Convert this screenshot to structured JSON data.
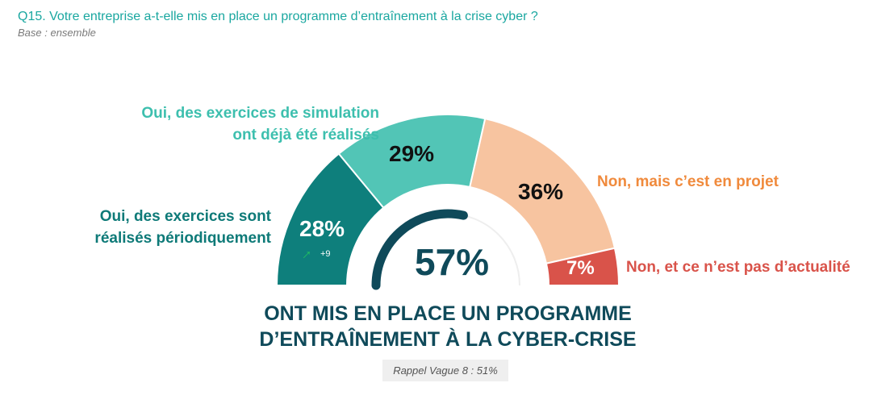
{
  "question": "Q15. Votre entreprise a-t-elle mis en place un programme d’entraînement à la crise cyber ?",
  "base": "Base : ensemble",
  "chart_data": {
    "type": "pie",
    "variant": "semi-donut",
    "slices": [
      {
        "label": "Oui, des exercices sont réalisés périodiquement",
        "line1": "Oui, des exercices sont",
        "line2": "réalisés périodiquement",
        "value": 28,
        "display": "28%",
        "color": "#0e7f7c",
        "label_color": "#0e7a78",
        "change": "+9",
        "change_icon": "arrow-up-right-icon"
      },
      {
        "label": "Oui, des exercices de simulation ont déjà été réalisés",
        "line1": "Oui, des exercices de simulation",
        "line2": "ont déjà été réalisés",
        "value": 29,
        "display": "29%",
        "color": "#52c5b6",
        "label_color": "#3dbfae"
      },
      {
        "label": "Non, mais c’est en projet",
        "value": 36,
        "display": "36%",
        "color": "#f7c4a0",
        "label_color": "#f08a3c"
      },
      {
        "label": "Non, et ce n’est pas d’actualité",
        "value": 7,
        "display": "7%",
        "color": "#d9534a",
        "label_color": "#d9534a"
      }
    ],
    "gauge": {
      "value": 57,
      "display": "57%",
      "color": "#0f4a5a",
      "track_color": "#eeeeee"
    }
  },
  "headline_line1": "ONT MIS EN PLACE UN PROGRAMME",
  "headline_line2": "D’ENTRAÎNEMENT À LA CYBER-CRISE",
  "rappel": "Rappel Vague 8 : 51%"
}
